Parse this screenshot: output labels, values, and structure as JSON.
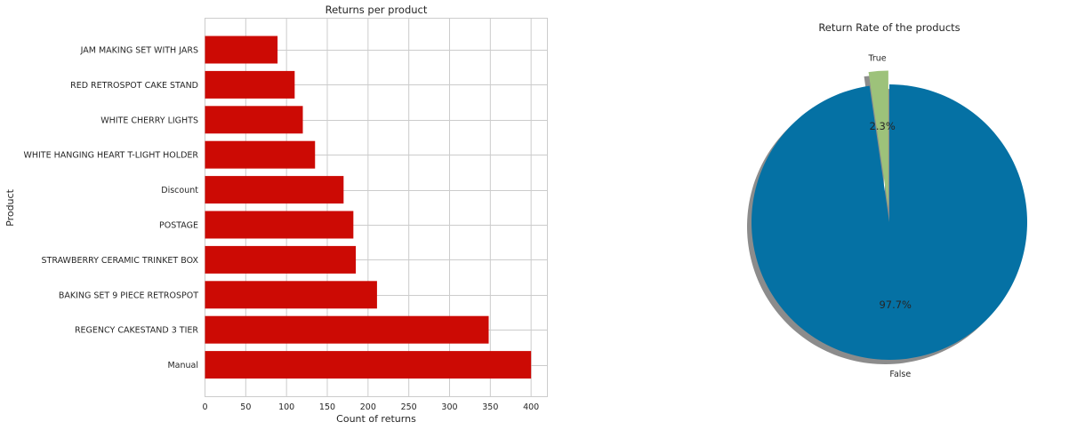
{
  "chart_data": [
    {
      "type": "bar",
      "orientation": "horizontal",
      "title": "Returns per product",
      "xlabel": "Count of returns",
      "ylabel": "Product",
      "xlim": [
        0,
        420
      ],
      "xticks": [
        0,
        50,
        100,
        150,
        200,
        250,
        300,
        350,
        400
      ],
      "grid": true,
      "bar_color": "#cc0a04",
      "categories": [
        "JAM MAKING SET WITH JARS",
        "RED RETROSPOT CAKE STAND",
        "WHITE CHERRY LIGHTS",
        "WHITE HANGING HEART T-LIGHT HOLDER",
        "Discount",
        "POSTAGE",
        "STRAWBERRY CERAMIC TRINKET BOX",
        "BAKING SET 9 PIECE RETROSPOT",
        "REGENCY CAKESTAND 3 TIER",
        "Manual"
      ],
      "values": [
        89,
        110,
        120,
        135,
        170,
        182,
        185,
        211,
        348,
        400
      ]
    },
    {
      "type": "pie",
      "title": "Return Rate of the products",
      "shadow": true,
      "slices": [
        {
          "label": "True",
          "value": 2.3,
          "pct_label": "2.3%",
          "color": "#9dc27a",
          "exploded": true
        },
        {
          "label": "False",
          "value": 97.7,
          "pct_label": "97.7%",
          "color": "#0571a4",
          "exploded": false
        }
      ]
    }
  ]
}
